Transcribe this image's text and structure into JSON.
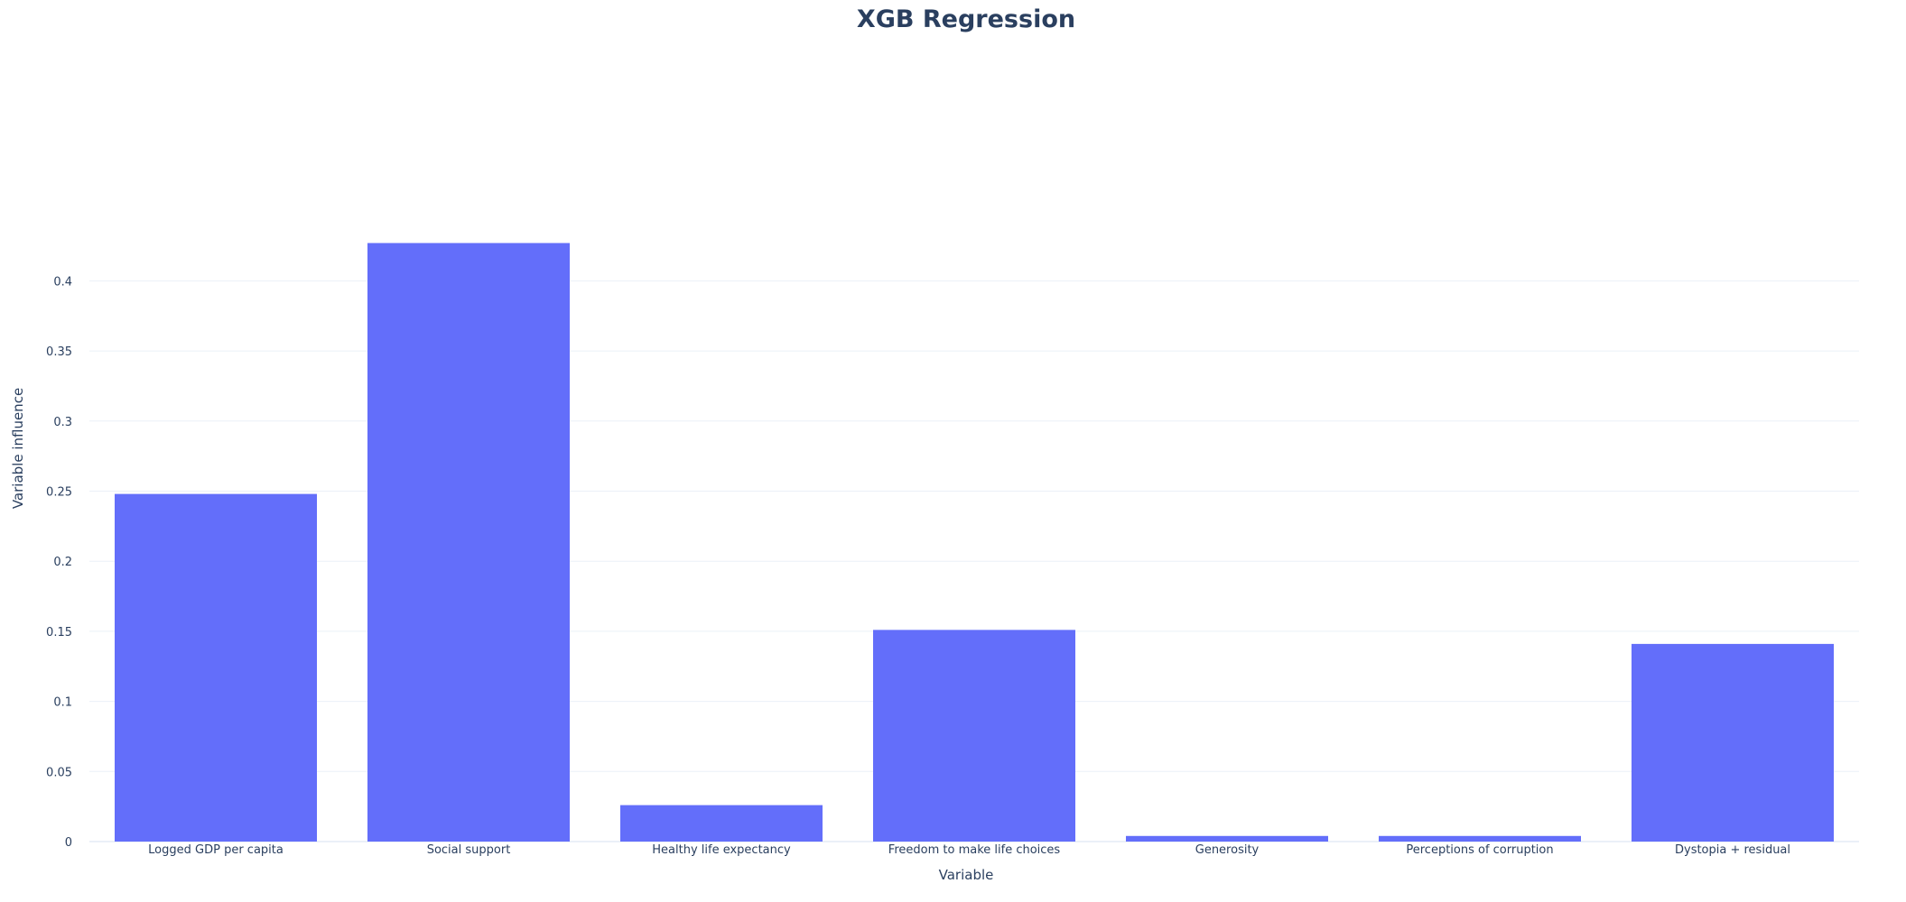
{
  "chart_data": {
    "type": "bar",
    "title": "XGB Regression",
    "xlabel": "Variable",
    "ylabel": "Variable influence",
    "categories": [
      "Logged GDP per capita",
      "Social support",
      "Healthy life expectancy",
      "Freedom to make life choices",
      "Generosity",
      "Perceptions of corruption",
      "Dystopia + residual"
    ],
    "values": [
      0.248,
      0.427,
      0.026,
      0.151,
      0.004,
      0.004,
      0.141
    ],
    "ylim": [
      0,
      0.45
    ],
    "yticks": [
      0,
      0.05,
      0.1,
      0.15,
      0.2,
      0.25,
      0.3,
      0.35,
      0.4
    ],
    "ytick_labels": [
      "0",
      "0.05",
      "0.1",
      "0.15",
      "0.2",
      "0.25",
      "0.3",
      "0.35",
      "0.4"
    ],
    "grid": true,
    "legend": "none",
    "colors": {
      "bar": "#636efa",
      "grid": "#ebf0f8",
      "text": "#2a3f5f",
      "background": "#ffffff"
    }
  }
}
